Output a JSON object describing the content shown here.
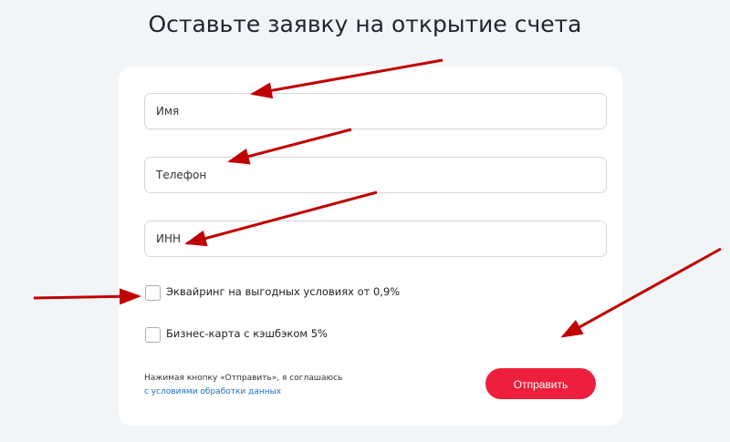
{
  "title": "Оставьте заявку на открытие счета",
  "fields": [
    {
      "placeholder": "Имя"
    },
    {
      "placeholder": "Телефон"
    },
    {
      "placeholder": "ИНН"
    }
  ],
  "checkboxes": [
    {
      "label": "Эквайринг на выгодных условиях от 0,9%",
      "checked": false
    },
    {
      "label": "Бизнес-карта с кэшбэком 5%",
      "checked": false
    }
  ],
  "agreement": {
    "text": "Нажимая кнопку «Отправить», я соглашаюсь",
    "link": "с условиями обработки данных"
  },
  "submit_label": "Отправить",
  "colors": {
    "accent": "#ee1f3d",
    "link": "#1a6fc4",
    "annotation_arrow": "#c00000"
  }
}
